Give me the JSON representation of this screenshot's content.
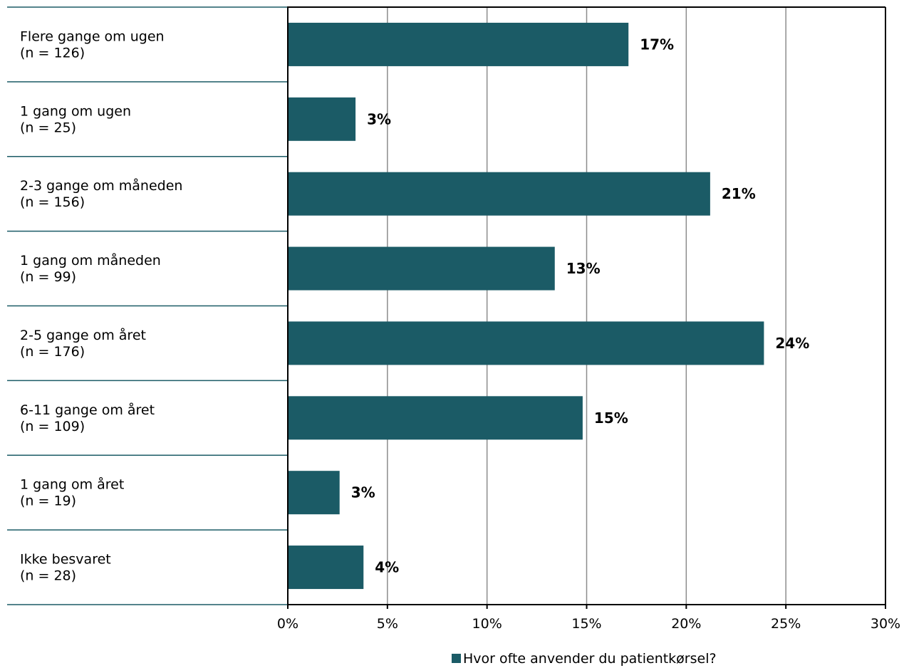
{
  "colors": {
    "bar": "#1b5b66",
    "category_divider": "#1b5b66",
    "grid": "#8c8c8c",
    "axis": "#000000"
  },
  "legend": {
    "label": "Hvor ofte anvender du patientkørsel?"
  },
  "chart_data": {
    "type": "bar",
    "orientation": "horizontal",
    "categories": [
      [
        "Flere gange om ugen",
        "(n = 126)"
      ],
      [
        "1 gang om ugen",
        "(n = 25)"
      ],
      [
        "2-3 gange om måneden",
        "(n = 156)"
      ],
      [
        "1 gang om måneden",
        "(n = 99)"
      ],
      [
        "2-5 gange om året",
        "(n = 176)"
      ],
      [
        "6-11 gange om året",
        "(n = 109)"
      ],
      [
        "1 gang om året",
        "(n = 19)"
      ],
      [
        "Ikke besvaret",
        "(n = 28)"
      ]
    ],
    "series": [
      {
        "name": "Hvor ofte anvender du patientkørsel?",
        "values": [
          17.1,
          3.4,
          21.2,
          13.4,
          23.9,
          14.8,
          2.6,
          3.8
        ],
        "labels": [
          "17%",
          "3%",
          "21%",
          "13%",
          "24%",
          "15%",
          "3%",
          "4%"
        ]
      }
    ],
    "xlim": [
      0,
      30
    ],
    "xticks": [
      0,
      5,
      10,
      15,
      20,
      25,
      30
    ],
    "xtick_labels": [
      "0%",
      "5%",
      "10%",
      "15%",
      "20%",
      "25%",
      "30%"
    ],
    "grid": true,
    "legend_position": "bottom"
  }
}
